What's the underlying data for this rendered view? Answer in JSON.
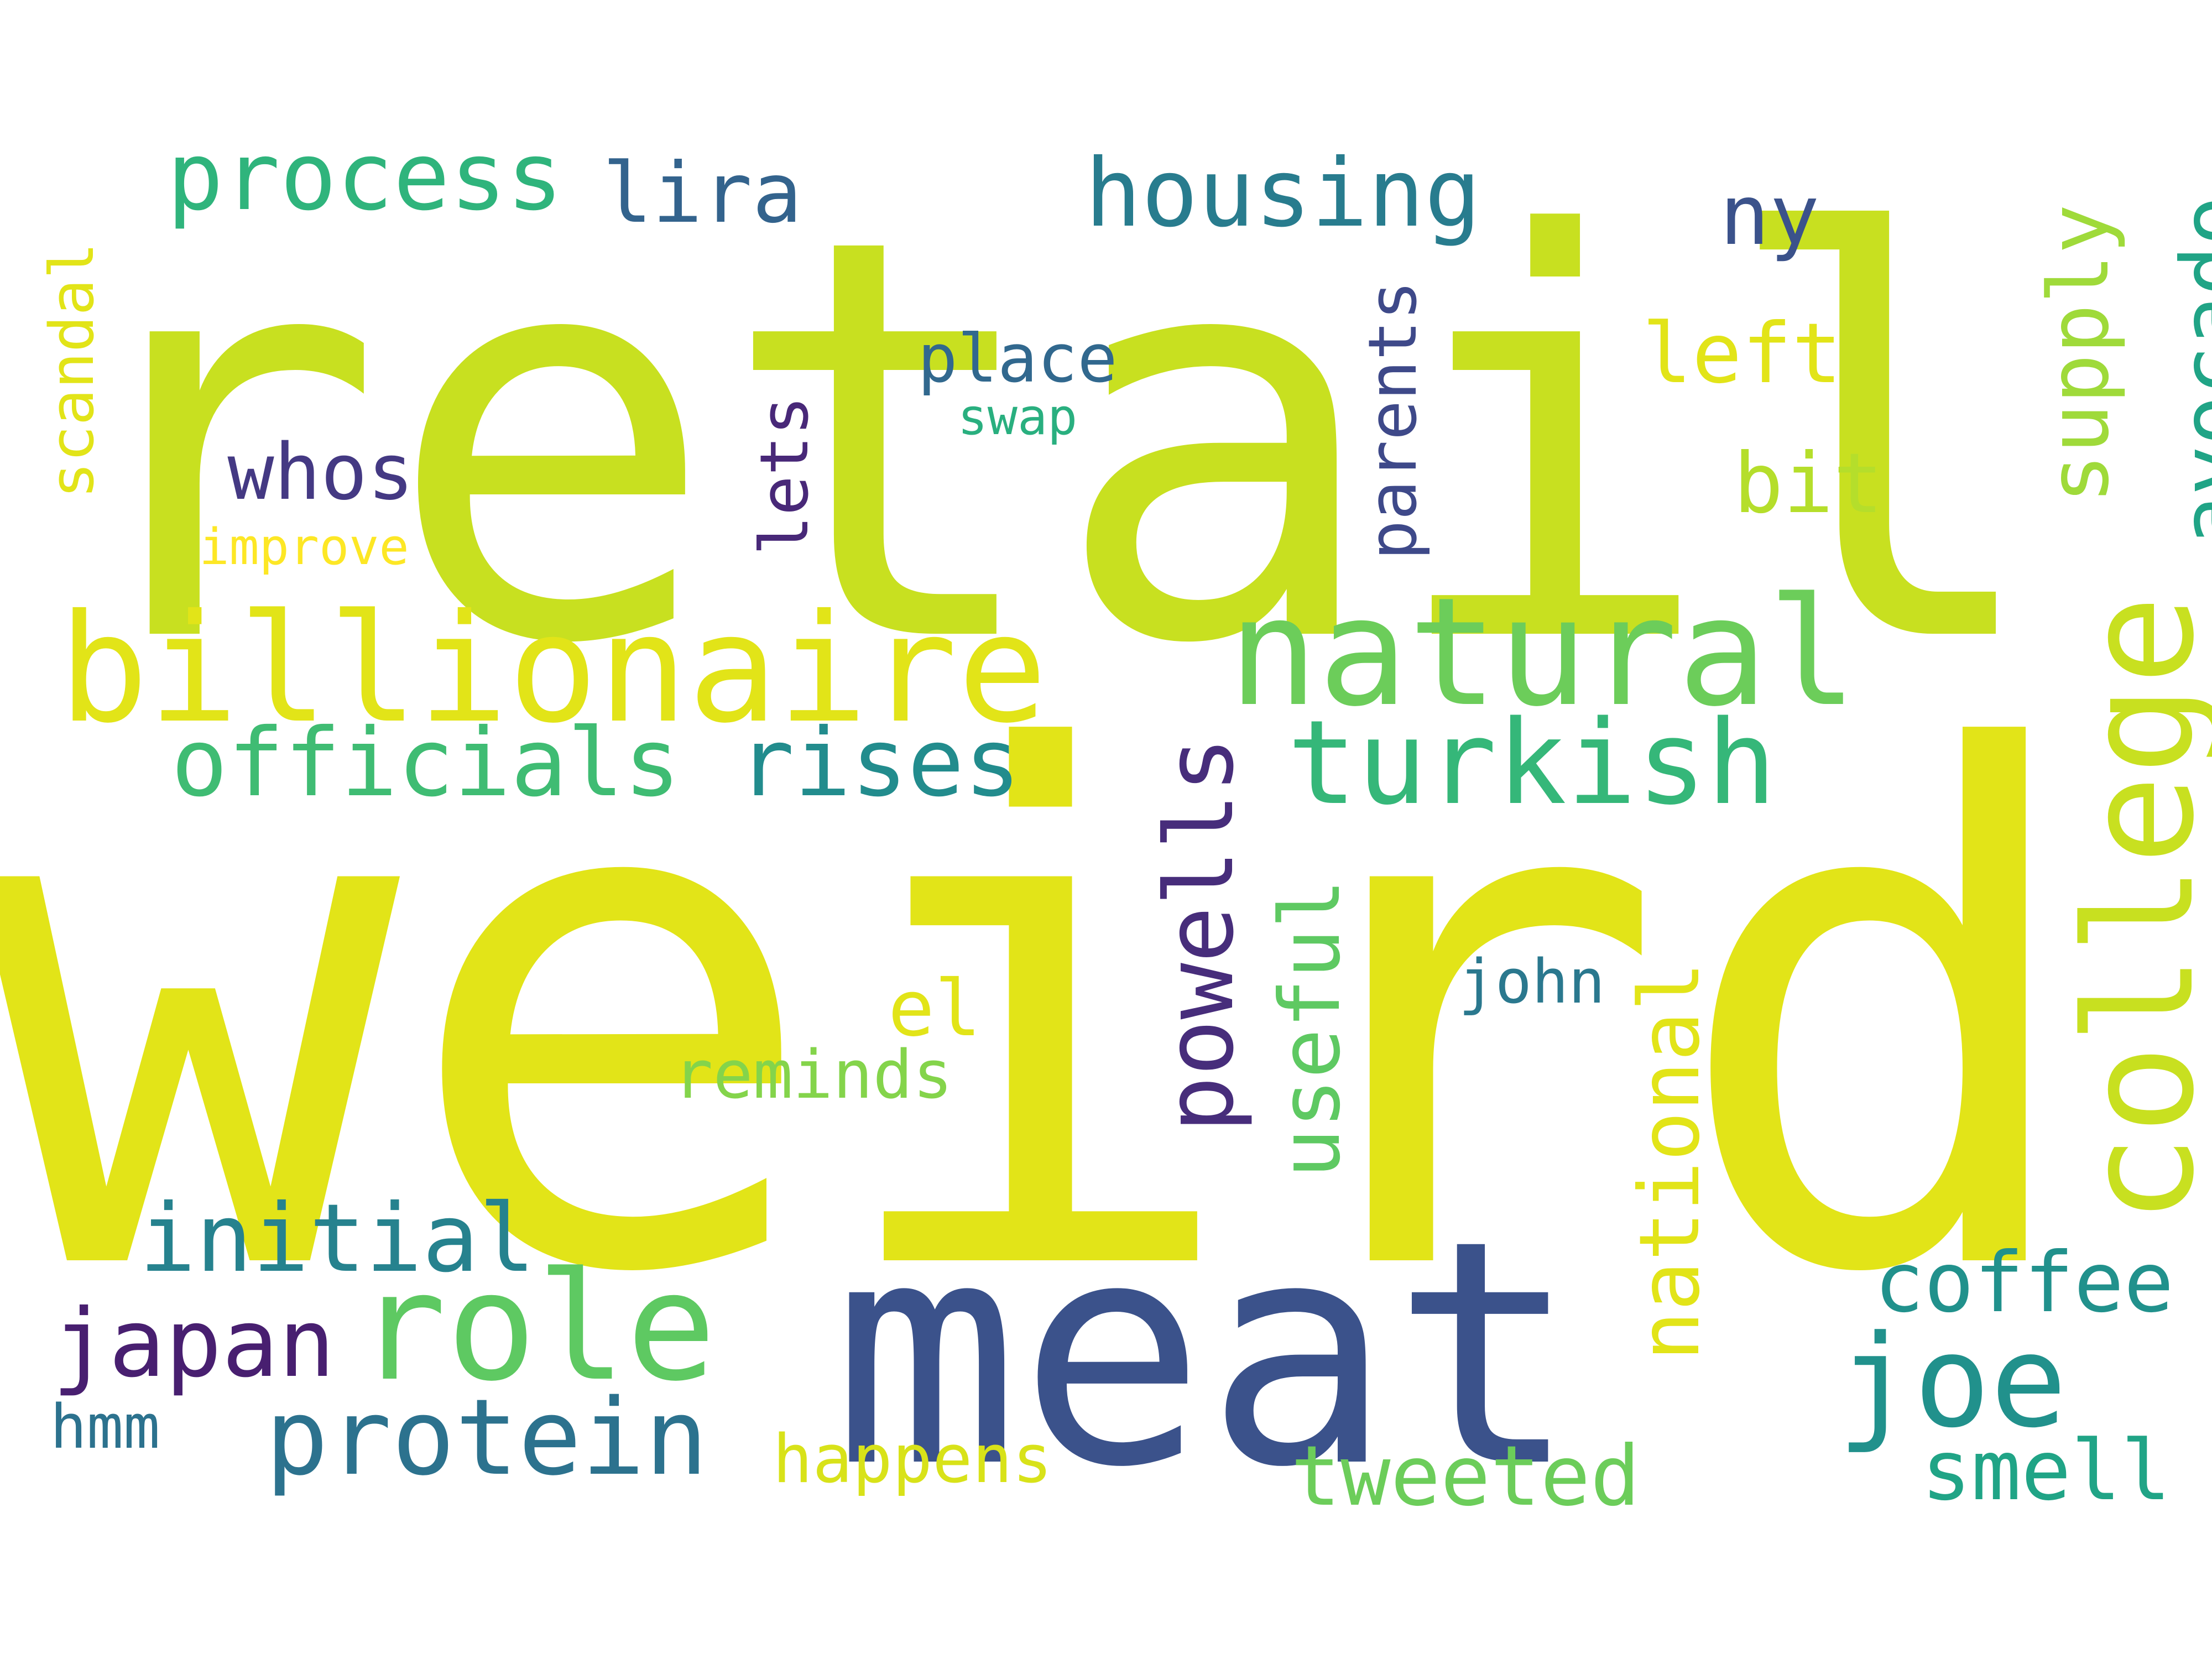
{
  "words": [
    {
      "text": "weird",
      "color": "#e2e418"
    },
    {
      "text": "retail",
      "color": "#c8e020"
    },
    {
      "text": "meat",
      "color": "#3b528b"
    },
    {
      "text": "billionaire",
      "color": "#e2e418"
    },
    {
      "text": "natural",
      "color": "#6ccd5a"
    },
    {
      "text": "college",
      "color": "#c8e020"
    },
    {
      "text": "role",
      "color": "#5ec962"
    },
    {
      "text": "joe",
      "color": "#21918c"
    },
    {
      "text": "turkish",
      "color": "#35b779"
    },
    {
      "text": "housing",
      "color": "#287c8e"
    },
    {
      "text": "process",
      "color": "#2fb47c"
    },
    {
      "text": "protein",
      "color": "#2c728e"
    },
    {
      "text": "initial",
      "color": "#26828e"
    },
    {
      "text": "japan",
      "color": "#481f70"
    },
    {
      "text": "officials",
      "color": "#3fbc73"
    },
    {
      "text": "rises",
      "color": "#228c8d"
    },
    {
      "text": "powells",
      "color": "#472d7b"
    },
    {
      "text": "useful",
      "color": "#5ec962"
    },
    {
      "text": "national",
      "color": "#e2e418"
    },
    {
      "text": "avocado",
      "color": "#20a486"
    },
    {
      "text": "supply",
      "color": "#9fda3a"
    },
    {
      "text": "coffee",
      "color": "#21918c"
    },
    {
      "text": "smell",
      "color": "#20a486"
    },
    {
      "text": "tweeted",
      "color": "#6ccd5a"
    },
    {
      "text": "lira",
      "color": "#33638d"
    },
    {
      "text": "ny",
      "color": "#3b528b"
    },
    {
      "text": "left",
      "color": "#e2e418"
    },
    {
      "text": "bit",
      "color": "#b5de2b"
    },
    {
      "text": "whos",
      "color": "#443983"
    },
    {
      "text": "parents",
      "color": "#3e4989"
    },
    {
      "text": "lets",
      "color": "#482878"
    },
    {
      "text": "place",
      "color": "#31688e"
    },
    {
      "text": "swap",
      "color": "#29af7f"
    },
    {
      "text": "scandal",
      "color": "#e2e418"
    },
    {
      "text": "improve",
      "color": "#fde725"
    },
    {
      "text": "el",
      "color": "#e2e418"
    },
    {
      "text": "reminds",
      "color": "#84d44b"
    },
    {
      "text": "john",
      "color": "#2a788e"
    },
    {
      "text": "happens",
      "color": "#d8e219"
    },
    {
      "text": "hmm",
      "color": "#2c728e"
    }
  ]
}
